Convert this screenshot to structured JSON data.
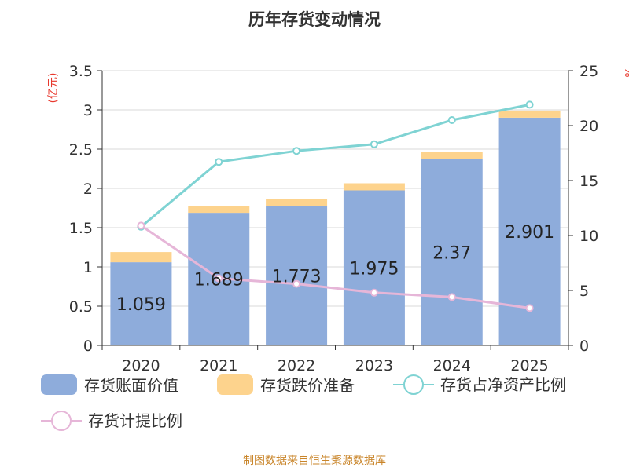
{
  "chart_data": {
    "type": "bar",
    "title": "历年存货变动情况",
    "categories": [
      "2020",
      "2021",
      "2022",
      "2023",
      "2024",
      "2025"
    ],
    "left_axis": {
      "label": "(亿元)",
      "ylim": [
        0,
        3.5
      ],
      "ticks": [
        "0",
        "0.5",
        "1",
        "1.5",
        "2",
        "2.5",
        "3",
        "3.5"
      ]
    },
    "right_axis": {
      "label": "%",
      "ylim": [
        0,
        25
      ],
      "ticks": [
        "0",
        "5",
        "10",
        "15",
        "20",
        "25"
      ]
    },
    "series": [
      {
        "name": "存货账面价值",
        "kind": "bar",
        "axis": "left",
        "color": "#8eacdb",
        "values": [
          1.059,
          1.689,
          1.773,
          1.975,
          2.37,
          2.901
        ],
        "labels": [
          "1.059",
          "1.689",
          "1.773",
          "1.975",
          "2.37",
          "2.901"
        ]
      },
      {
        "name": "存货跌价准备",
        "kind": "bar-stacked",
        "axis": "left",
        "color": "#fdd38d",
        "values": [
          0.13,
          0.09,
          0.09,
          0.09,
          0.1,
          0.09
        ]
      },
      {
        "name": "存货占净资产比例",
        "kind": "line",
        "axis": "right",
        "color": "#7fd3d3",
        "values": [
          10.8,
          16.7,
          17.7,
          18.3,
          20.5,
          21.9
        ]
      },
      {
        "name": "存货计提比例",
        "kind": "line",
        "axis": "right",
        "color": "#e6b6d8",
        "values": [
          10.9,
          6.1,
          5.6,
          4.8,
          4.4,
          3.4
        ]
      }
    ],
    "grid": true,
    "legend_position": "bottom"
  },
  "source_note": "制图数据来自恒生聚源数据库"
}
